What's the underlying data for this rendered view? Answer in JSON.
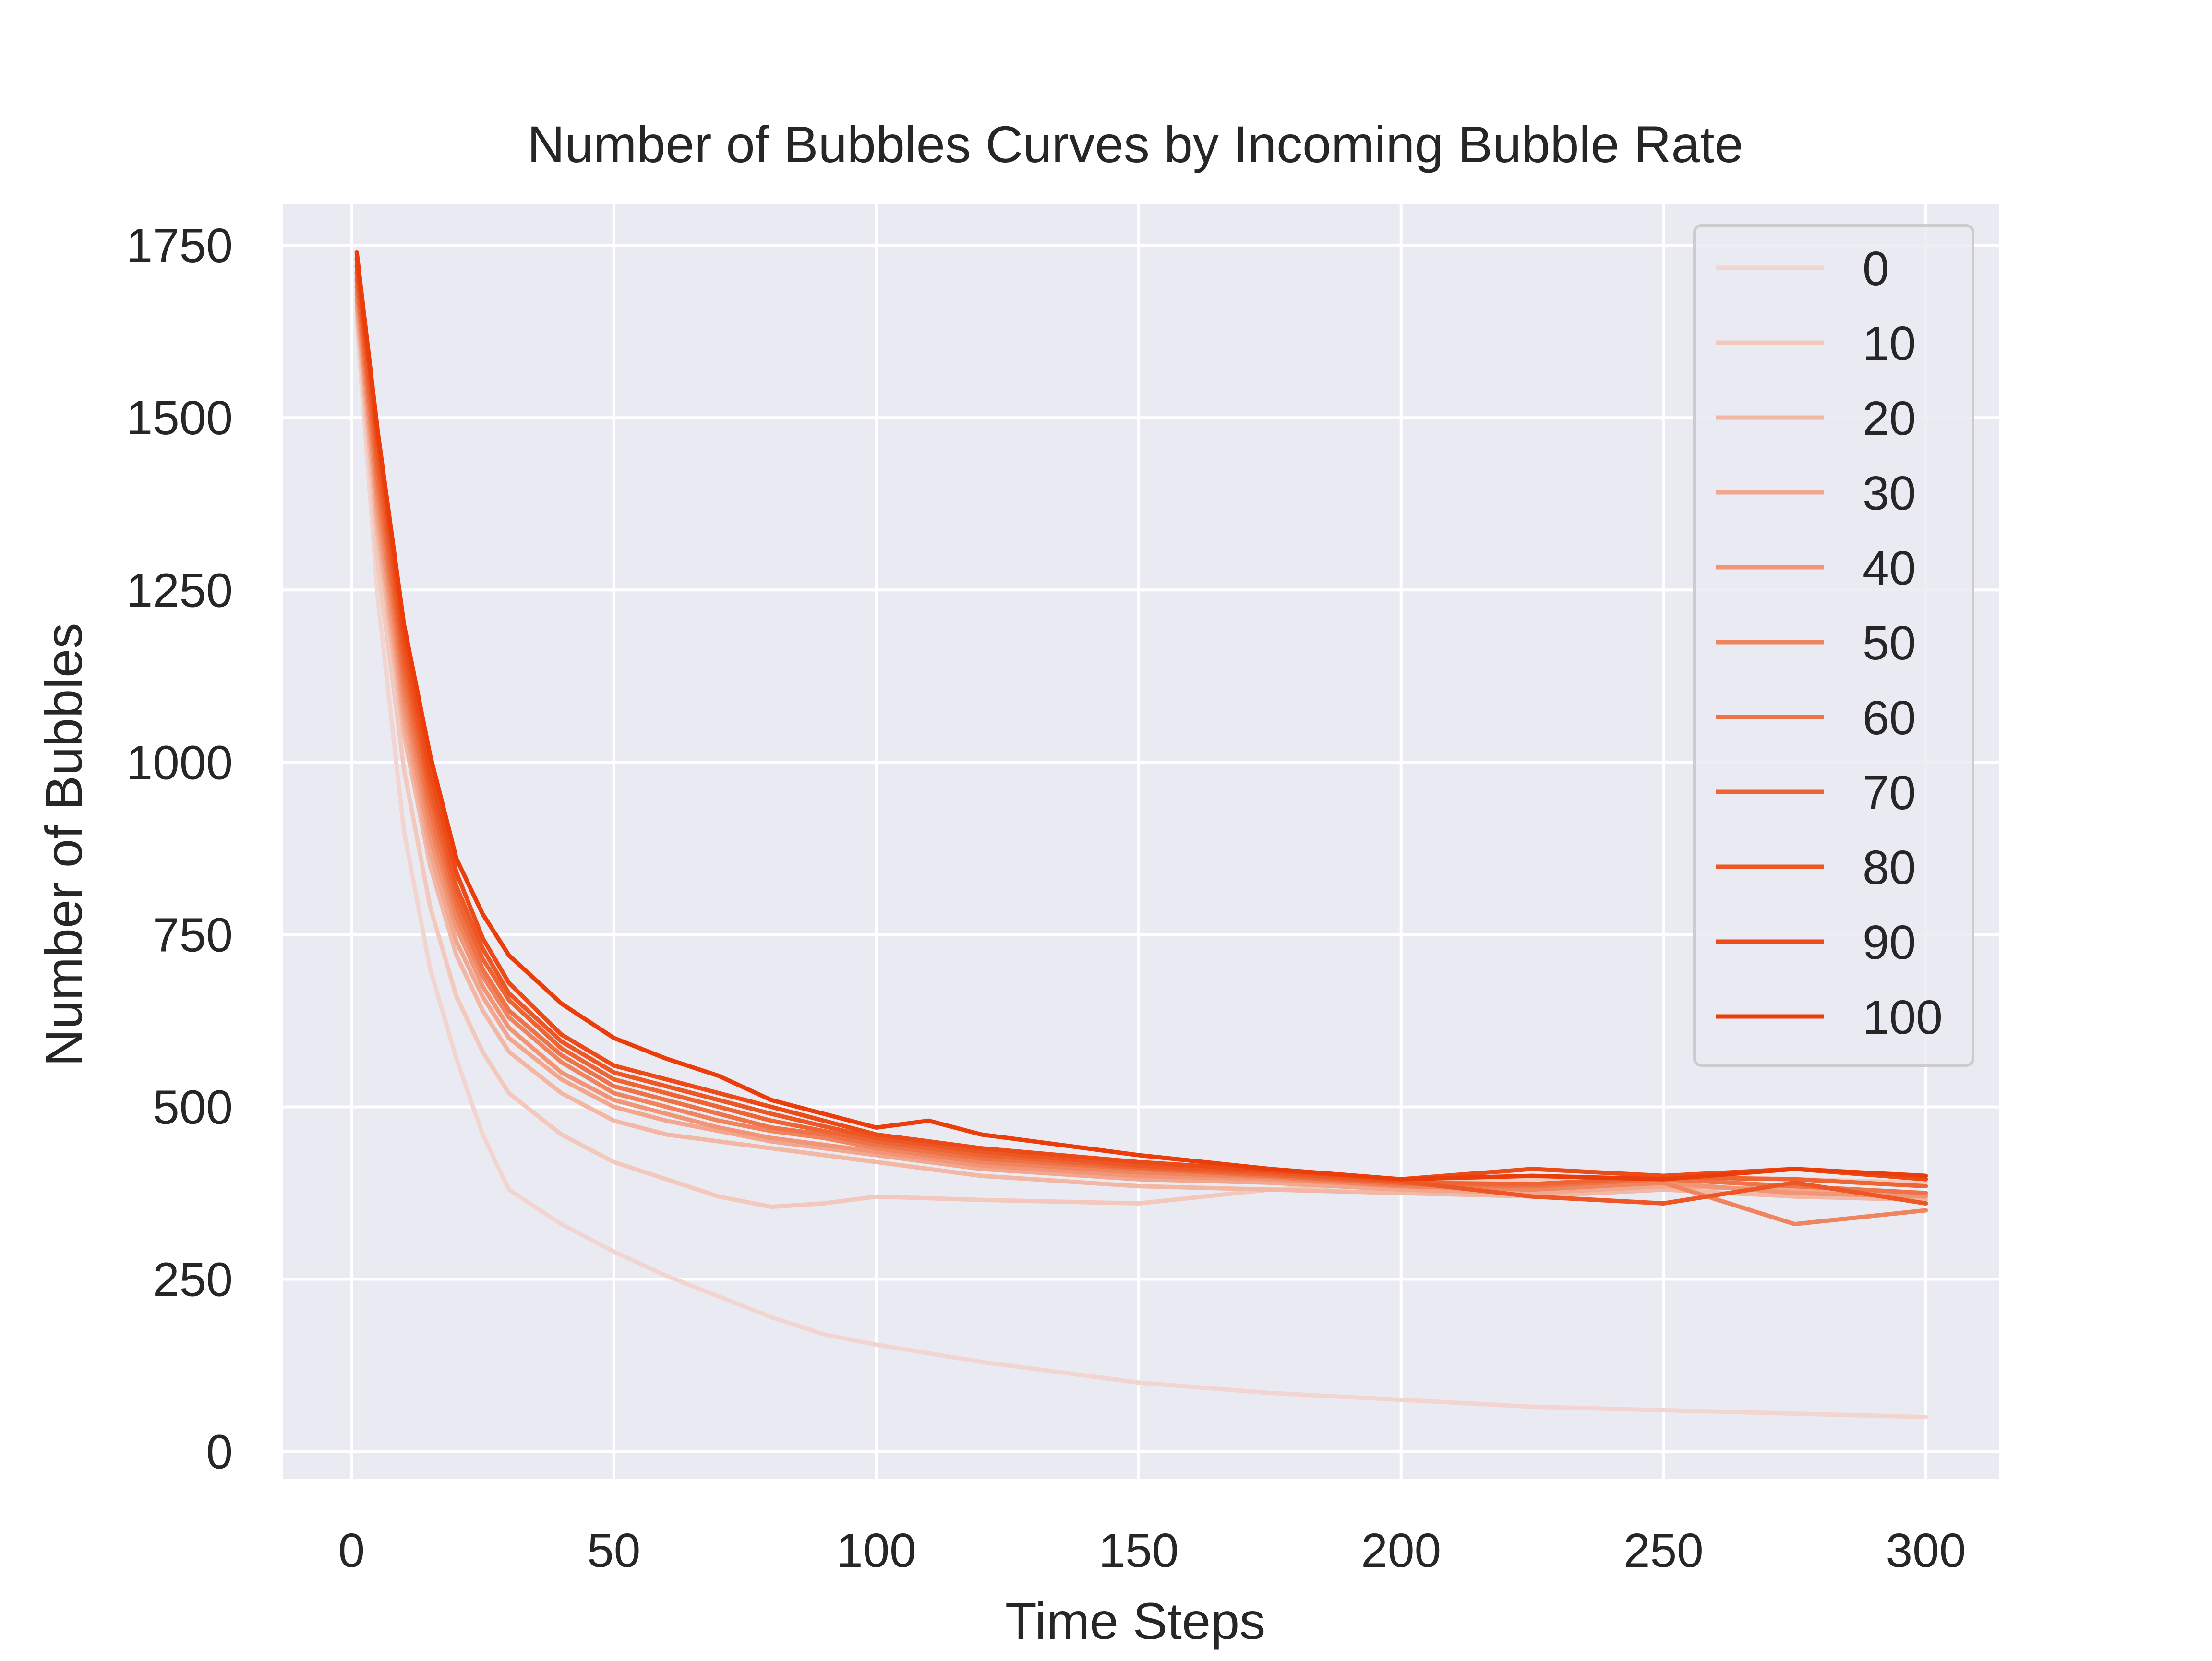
{
  "chart_data": {
    "type": "line",
    "title": "Number of Bubbles Curves by Incoming Bubble Rate",
    "xlabel": "Time Steps",
    "ylabel": "Number of Bubbles",
    "xlim": [
      -13,
      314
    ],
    "ylim": [
      -40,
      1810
    ],
    "xticks": [
      0,
      50,
      100,
      150,
      200,
      250,
      300
    ],
    "yticks": [
      0,
      250,
      500,
      750,
      1000,
      1250,
      1500,
      1750
    ],
    "grid": true,
    "legend_position": "top-right",
    "colors": {
      "plot_background": "#eaeaf2",
      "grid": "#ffffff",
      "legend_border": "#cccccc",
      "text": "#262626"
    },
    "series": [
      {
        "name": "0",
        "color": "#f2d5d0",
        "x": [
          1,
          5,
          10,
          15,
          20,
          25,
          30,
          40,
          50,
          60,
          70,
          80,
          90,
          100,
          120,
          150,
          175,
          200,
          225,
          250,
          275,
          300
        ],
        "y": [
          1640,
          1240,
          900,
          700,
          570,
          460,
          380,
          330,
          290,
          255,
          225,
          195,
          170,
          155,
          130,
          100,
          85,
          75,
          65,
          60,
          55,
          50
        ]
      },
      {
        "name": "10",
        "color": "#f3c9bd",
        "x": [
          1,
          5,
          10,
          15,
          20,
          25,
          30,
          40,
          50,
          60,
          70,
          80,
          90,
          100,
          120,
          150,
          175,
          200,
          225,
          250,
          275,
          300
        ],
        "y": [
          1650,
          1290,
          990,
          790,
          660,
          580,
          520,
          460,
          420,
          395,
          370,
          355,
          360,
          370,
          365,
          360,
          380,
          390,
          395,
          400,
          395,
          390
        ]
      },
      {
        "name": "20",
        "color": "#f3b7a5",
        "x": [
          1,
          5,
          10,
          15,
          20,
          25,
          30,
          40,
          50,
          60,
          70,
          80,
          90,
          100,
          120,
          150,
          175,
          200,
          225,
          250,
          275,
          300
        ],
        "y": [
          1660,
          1330,
          1040,
          850,
          720,
          640,
          580,
          520,
          480,
          460,
          450,
          440,
          430,
          420,
          400,
          385,
          380,
          375,
          370,
          380,
          370,
          365
        ]
      },
      {
        "name": "30",
        "color": "#f2a68d",
        "x": [
          1,
          5,
          10,
          15,
          20,
          25,
          30,
          40,
          50,
          60,
          70,
          80,
          90,
          100,
          120,
          150,
          175,
          200,
          225,
          250,
          275,
          300
        ],
        "y": [
          1670,
          1350,
          1060,
          870,
          740,
          660,
          600,
          540,
          500,
          480,
          465,
          450,
          440,
          430,
          410,
          395,
          390,
          380,
          375,
          385,
          380,
          370
        ]
      },
      {
        "name": "40",
        "color": "#f19576",
        "x": [
          1,
          5,
          10,
          15,
          20,
          25,
          30,
          40,
          50,
          60,
          70,
          80,
          90,
          100,
          120,
          150,
          175,
          200,
          225,
          250,
          275,
          300
        ],
        "y": [
          1680,
          1370,
          1080,
          890,
          760,
          675,
          615,
          550,
          510,
          490,
          470,
          455,
          445,
          435,
          415,
          400,
          395,
          385,
          380,
          390,
          375,
          370
        ]
      },
      {
        "name": "50",
        "color": "#f0845f",
        "x": [
          1,
          5,
          10,
          15,
          20,
          25,
          30,
          40,
          50,
          60,
          70,
          80,
          90,
          100,
          120,
          150,
          175,
          200,
          225,
          250,
          275,
          300
        ],
        "y": [
          1690,
          1390,
          1100,
          910,
          775,
          690,
          630,
          565,
          520,
          500,
          480,
          465,
          455,
          440,
          420,
          405,
          398,
          385,
          380,
          390,
          330,
          350
        ]
      },
      {
        "name": "60",
        "color": "#ef7349",
        "x": [
          1,
          5,
          10,
          15,
          20,
          25,
          30,
          40,
          50,
          60,
          70,
          80,
          90,
          100,
          120,
          150,
          175,
          200,
          225,
          250,
          275,
          300
        ],
        "y": [
          1700,
          1410,
          1120,
          930,
          790,
          700,
          640,
          575,
          530,
          510,
          490,
          470,
          460,
          445,
          425,
          410,
          400,
          388,
          385,
          395,
          385,
          375
        ]
      },
      {
        "name": "70",
        "color": "#ee6433",
        "x": [
          1,
          5,
          10,
          15,
          20,
          25,
          30,
          40,
          50,
          60,
          70,
          80,
          90,
          100,
          120,
          150,
          175,
          200,
          225,
          250,
          275,
          300
        ],
        "y": [
          1710,
          1430,
          1140,
          950,
          805,
          715,
          655,
          585,
          540,
          520,
          500,
          480,
          465,
          450,
          430,
          412,
          402,
          390,
          388,
          398,
          395,
          385
        ]
      },
      {
        "name": "80",
        "color": "#ed5625",
        "x": [
          1,
          5,
          10,
          15,
          20,
          25,
          30,
          40,
          50,
          60,
          70,
          80,
          90,
          100,
          120,
          150,
          175,
          200,
          225,
          250,
          275,
          300
        ],
        "y": [
          1720,
          1450,
          1160,
          965,
          820,
          730,
          665,
          595,
          550,
          530,
          510,
          490,
          472,
          455,
          435,
          415,
          405,
          392,
          370,
          360,
          390,
          360
        ]
      },
      {
        "name": "90",
        "color": "#ec4a17",
        "x": [
          1,
          5,
          10,
          15,
          20,
          25,
          30,
          40,
          50,
          60,
          70,
          80,
          90,
          100,
          120,
          150,
          175,
          200,
          225,
          250,
          275,
          300
        ],
        "y": [
          1730,
          1470,
          1180,
          985,
          840,
          745,
          680,
          605,
          560,
          540,
          520,
          500,
          480,
          460,
          440,
          420,
          408,
          395,
          410,
          400,
          410,
          395
        ]
      },
      {
        "name": "100",
        "color": "#eb3d0a",
        "x": [
          1,
          5,
          10,
          15,
          20,
          25,
          30,
          40,
          50,
          60,
          70,
          80,
          90,
          100,
          110,
          120,
          150,
          175,
          200,
          225,
          250,
          275,
          300
        ],
        "y": [
          1740,
          1480,
          1200,
          1010,
          860,
          780,
          720,
          650,
          600,
          570,
          545,
          510,
          490,
          470,
          480,
          460,
          430,
          410,
          395,
          400,
          395,
          410,
          400
        ]
      }
    ]
  }
}
